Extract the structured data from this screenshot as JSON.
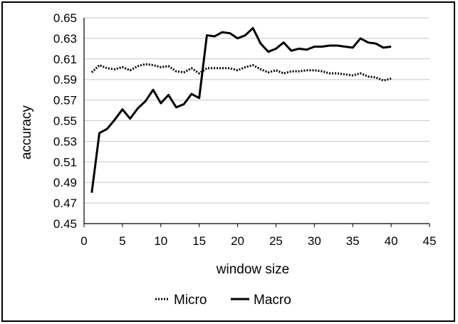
{
  "chart_data": {
    "type": "line",
    "title": "",
    "xlabel": "window size",
    "ylabel": "accuracy",
    "xlim": [
      0,
      45
    ],
    "ylim": [
      0.45,
      0.65
    ],
    "xticks": [
      "0",
      "5",
      "10",
      "15",
      "20",
      "25",
      "30",
      "35",
      "40",
      "45"
    ],
    "yticks": [
      "0.45",
      "0.47",
      "0.49",
      "0.51",
      "0.53",
      "0.55",
      "0.57",
      "0.59",
      "0.61",
      "0.63",
      "0.65"
    ],
    "grid": "horizontal",
    "legend_position": "bottom",
    "x": [
      1,
      2,
      3,
      4,
      5,
      6,
      7,
      8,
      9,
      10,
      11,
      12,
      13,
      14,
      15,
      16,
      17,
      18,
      19,
      20,
      21,
      22,
      23,
      24,
      25,
      26,
      27,
      28,
      29,
      30,
      31,
      32,
      33,
      34,
      35,
      36,
      37,
      38,
      39,
      40
    ],
    "series": [
      {
        "name": "Micro",
        "style": "dotted",
        "color": "#000000",
        "values": [
          0.597,
          0.604,
          0.601,
          0.6,
          0.602,
          0.599,
          0.603,
          0.605,
          0.604,
          0.602,
          0.603,
          0.598,
          0.597,
          0.601,
          0.596,
          0.601,
          0.601,
          0.601,
          0.601,
          0.599,
          0.602,
          0.604,
          0.6,
          0.597,
          0.599,
          0.596,
          0.598,
          0.598,
          0.599,
          0.599,
          0.598,
          0.596,
          0.596,
          0.595,
          0.594,
          0.596,
          0.593,
          0.592,
          0.589,
          0.591
        ]
      },
      {
        "name": "Macro",
        "style": "solid",
        "color": "#000000",
        "values": [
          0.48,
          0.538,
          0.542,
          0.551,
          0.561,
          0.552,
          0.562,
          0.569,
          0.58,
          0.567,
          0.575,
          0.563,
          0.566,
          0.576,
          0.572,
          0.633,
          0.632,
          0.636,
          0.635,
          0.63,
          0.633,
          0.64,
          0.625,
          0.617,
          0.62,
          0.626,
          0.618,
          0.62,
          0.619,
          0.622,
          0.622,
          0.623,
          0.623,
          0.622,
          0.621,
          0.63,
          0.626,
          0.625,
          0.621,
          0.622
        ]
      }
    ]
  }
}
